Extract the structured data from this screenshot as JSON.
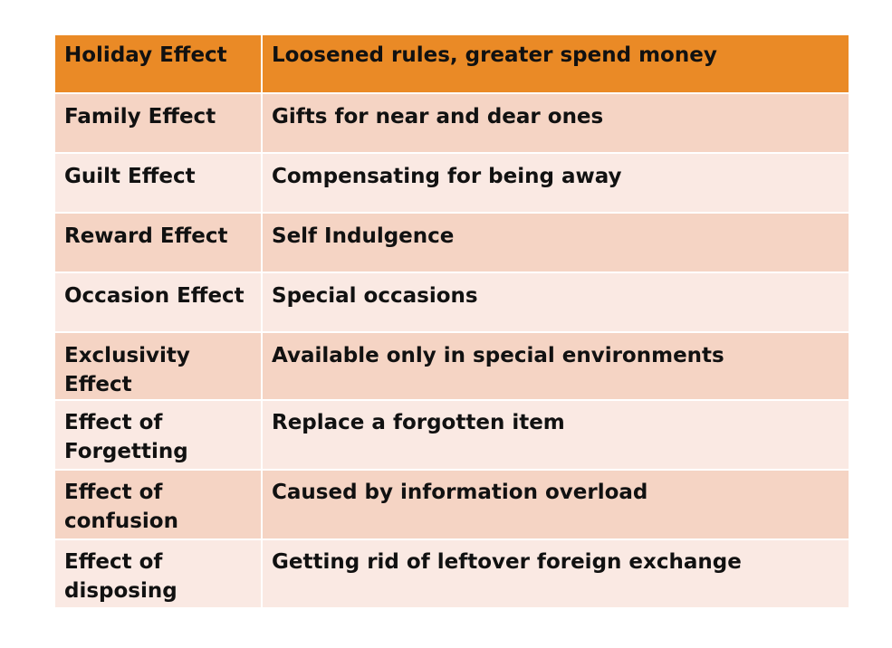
{
  "table": {
    "header": {
      "effect": "Holiday Effect",
      "description": "Loosened rules, greater spend money"
    },
    "rows": [
      {
        "effect": "Family Effect",
        "description": "Gifts for near and dear ones"
      },
      {
        "effect": "Guilt Effect",
        "description": "Compensating for being away"
      },
      {
        "effect": "Reward Effect",
        "description": "Self Indulgence"
      },
      {
        "effect": "Occasion Effect",
        "description": "Special occasions"
      },
      {
        "effect": "Exclusivity Effect",
        "description": "Available only in special environments"
      },
      {
        "effect": "Effect of Forgetting",
        "description": "Replace a forgotten item"
      },
      {
        "effect": "Effect of confusion",
        "description": "Caused by information overload"
      },
      {
        "effect": "Effect of disposing",
        "description": "Getting rid of leftover foreign exchange"
      }
    ]
  },
  "colors": {
    "header_fill": "#ea8a26",
    "row_fill_dark": "#f5d4c4",
    "row_fill_light": "#fae9e3"
  }
}
